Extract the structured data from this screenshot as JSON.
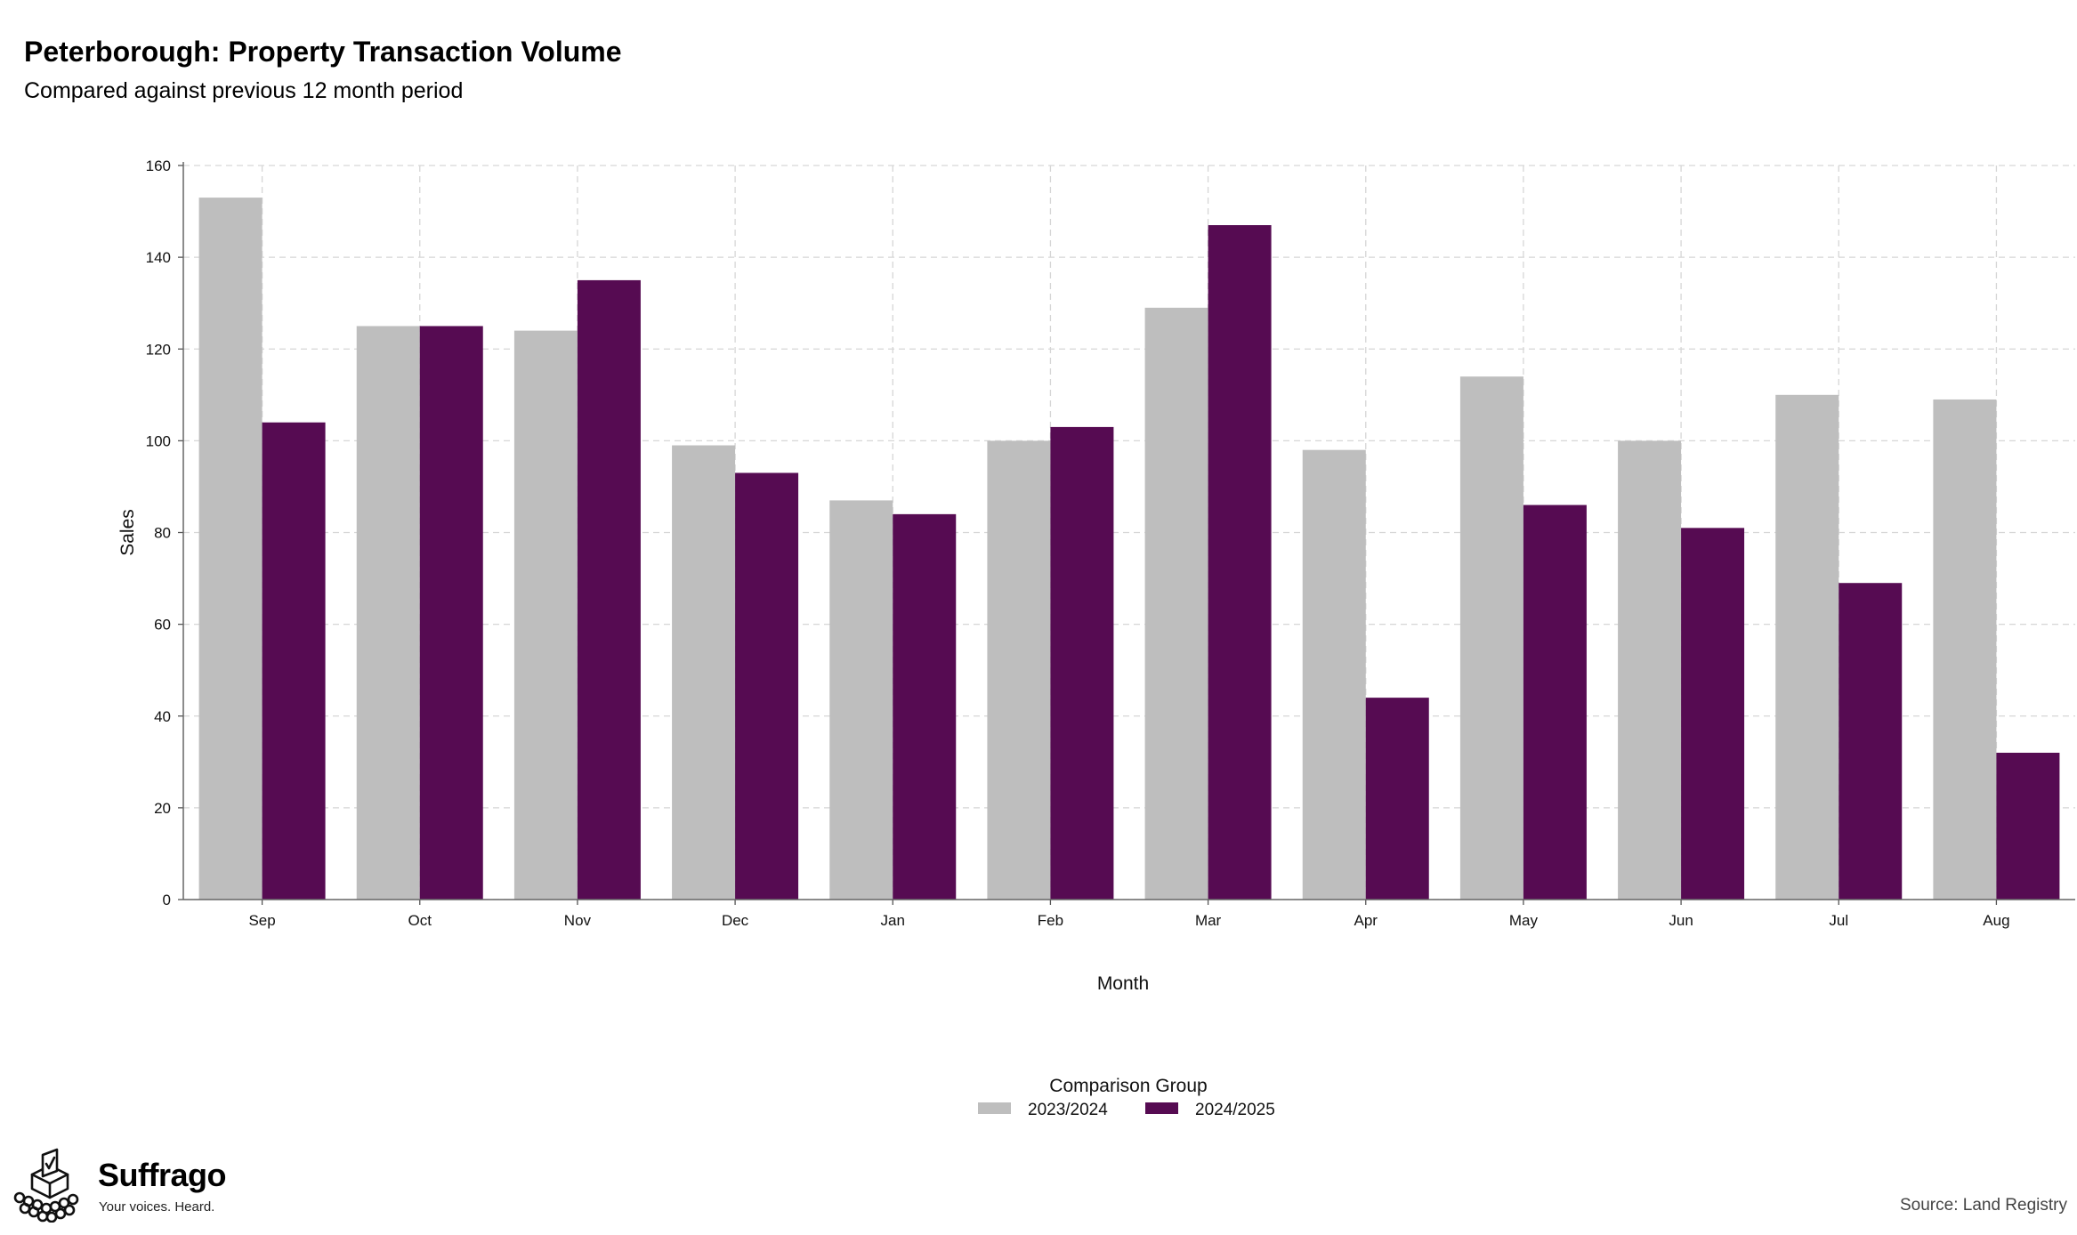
{
  "header": {
    "title": "Peterborough: Property Transaction Volume",
    "subtitle": "Compared against previous 12 month period"
  },
  "branding": {
    "name": "Suffrago",
    "tagline": "Your voices. Heard."
  },
  "footer": {
    "source": "Source: Land Registry"
  },
  "chart_data": {
    "type": "bar",
    "title": "Peterborough: Property Transaction Volume",
    "subtitle": "Compared against previous 12 month period",
    "xlabel": "Month",
    "ylabel": "Sales",
    "ylim": [
      0,
      160
    ],
    "yticks": [
      0,
      20,
      40,
      60,
      80,
      100,
      120,
      140,
      160
    ],
    "grid": true,
    "legend_title": "Comparison Group",
    "legend_position": "bottom-center",
    "categories": [
      "Sep",
      "Oct",
      "Nov",
      "Dec",
      "Jan",
      "Feb",
      "Mar",
      "Apr",
      "May",
      "Jun",
      "Jul",
      "Aug"
    ],
    "series": [
      {
        "name": "2023/2024",
        "color": "#bebebe",
        "values": [
          153,
          125,
          124,
          99,
          87,
          100,
          129,
          98,
          114,
          100,
          110,
          109
        ]
      },
      {
        "name": "2024/2025",
        "color": "#560b52",
        "values": [
          104,
          125,
          135,
          93,
          84,
          103,
          147,
          44,
          86,
          81,
          69,
          32
        ]
      }
    ]
  }
}
